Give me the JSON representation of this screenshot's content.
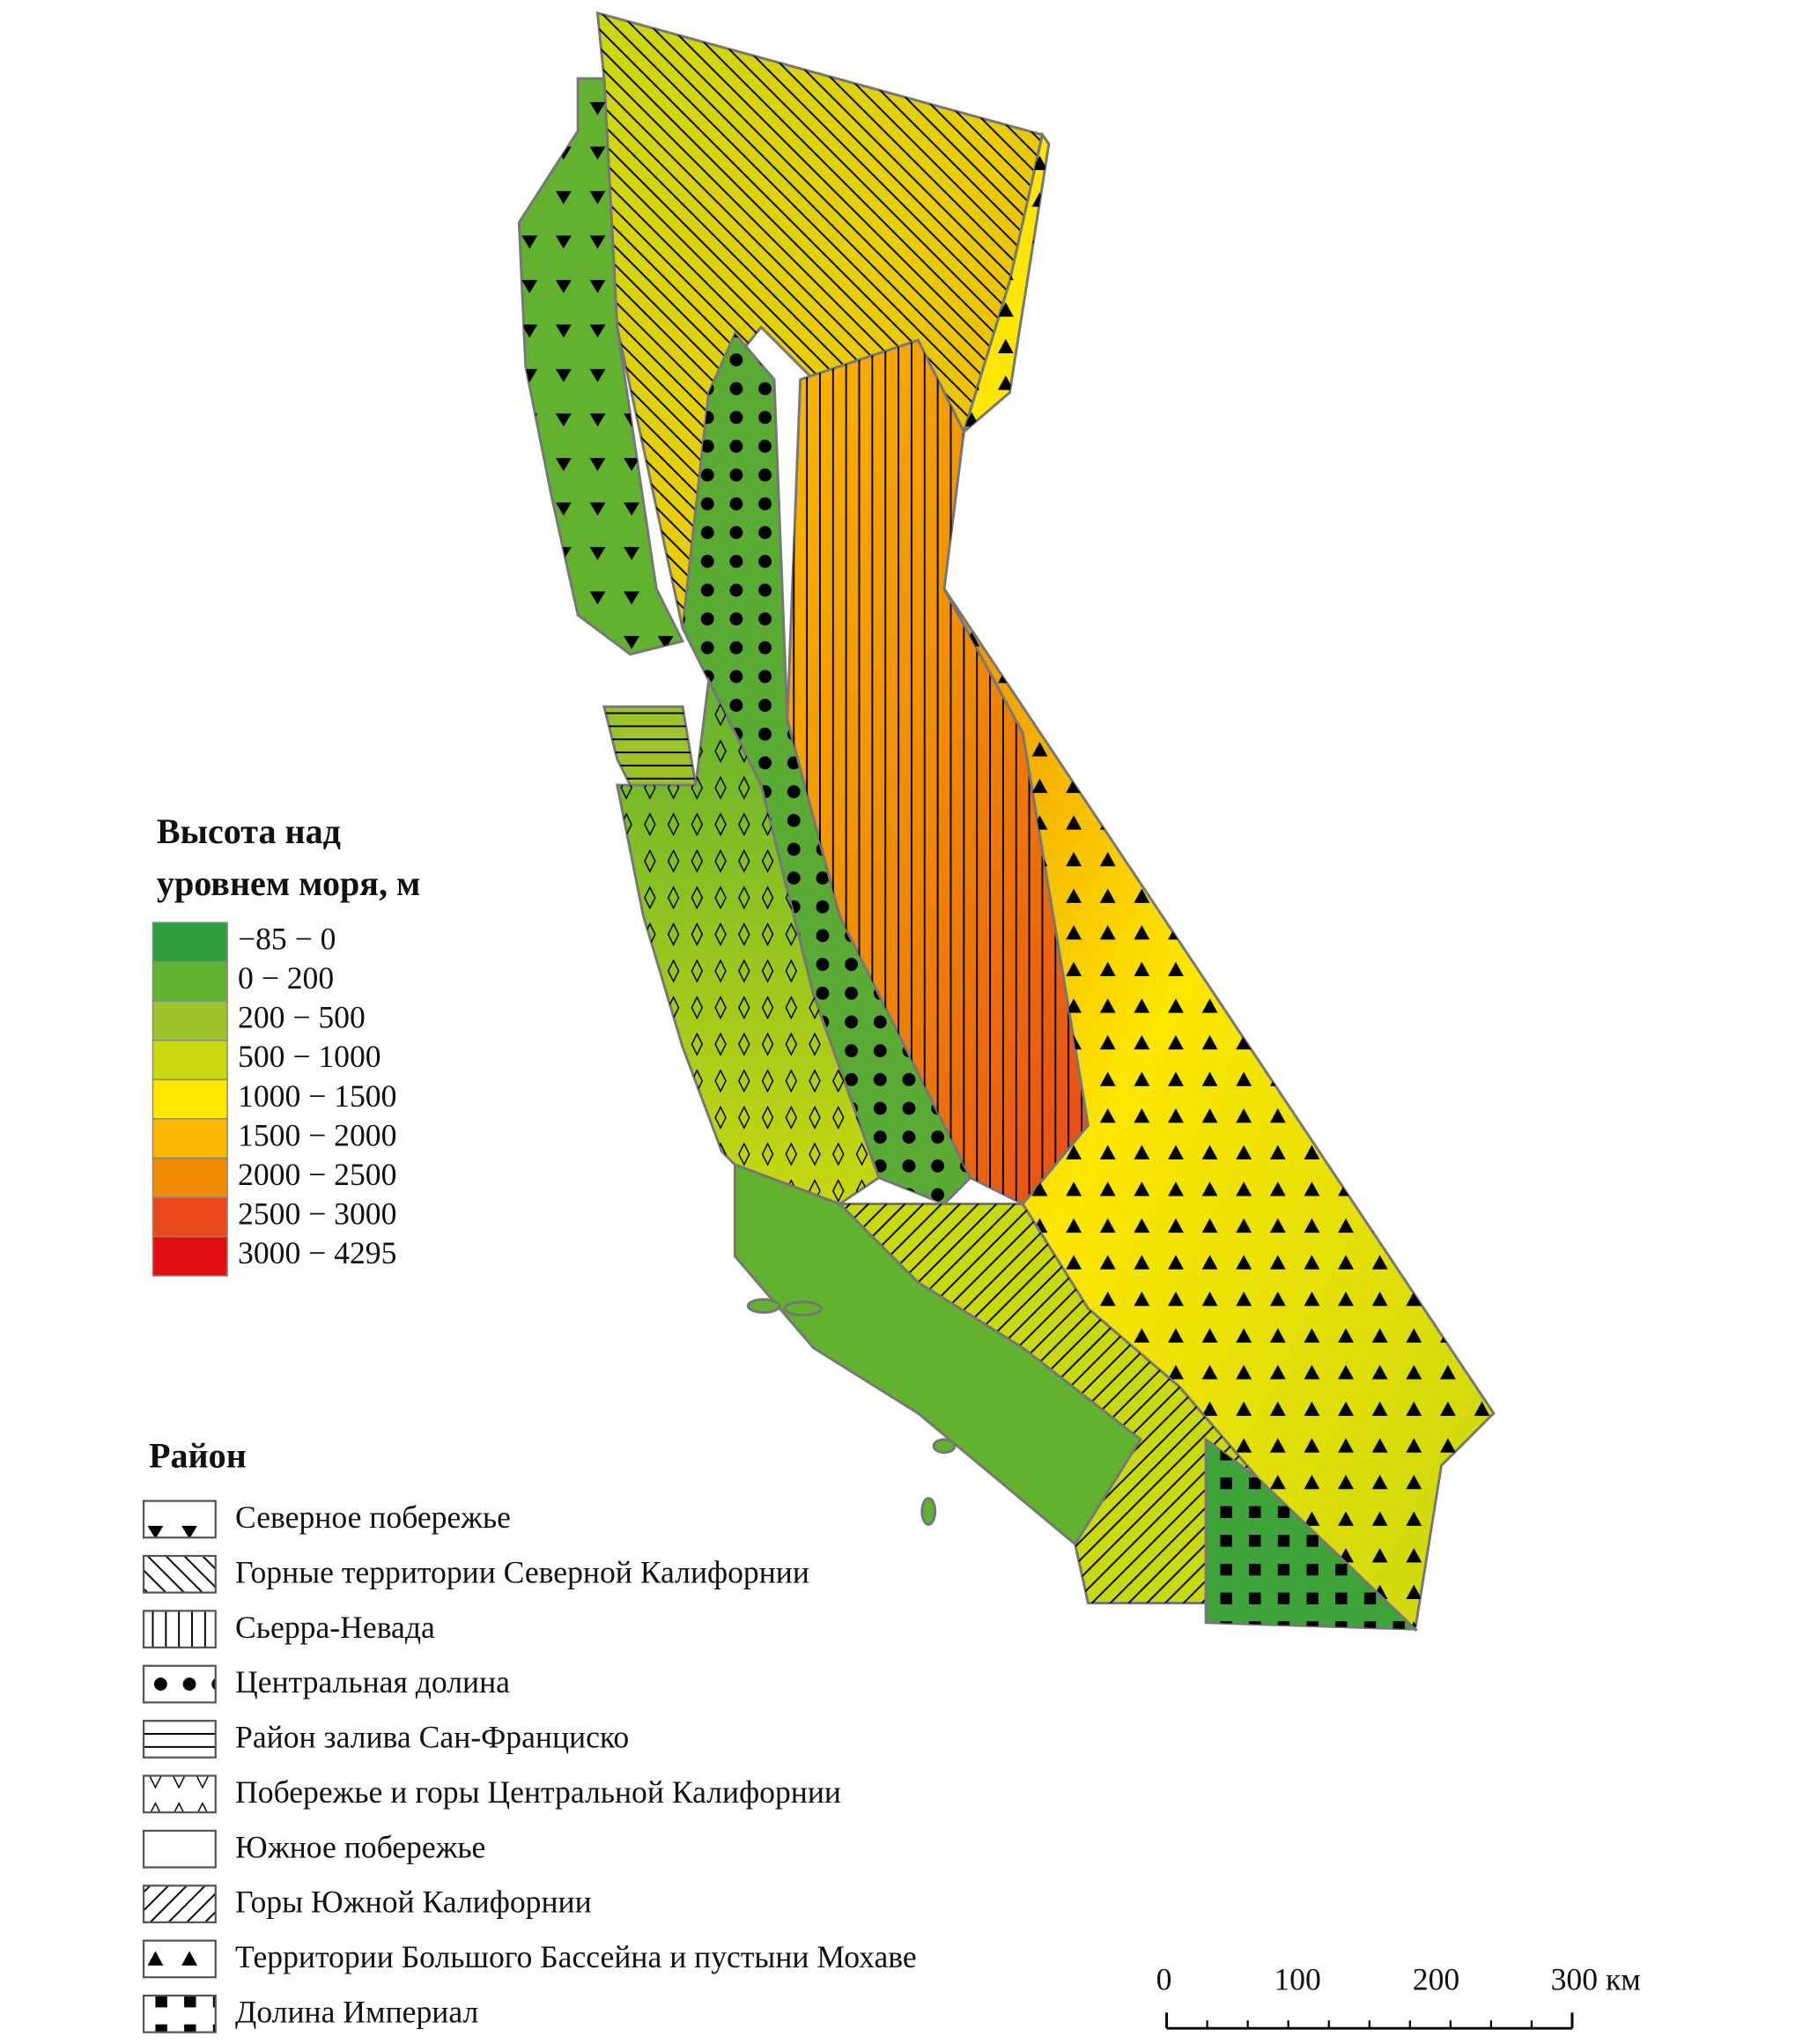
{
  "legend_elevation": {
    "title_lines": [
      "Высота над",
      "уровнем моря, м"
    ],
    "items": [
      {
        "label": "−85 − 0",
        "color": "#2e9e3e"
      },
      {
        "label": "0 − 200",
        "color": "#63b22f"
      },
      {
        "label": "200 − 500",
        "color": "#9cc42a"
      },
      {
        "label": "500 − 1000",
        "color": "#c9d80f"
      },
      {
        "label": "1000 − 1500",
        "color": "#fde600"
      },
      {
        "label": "1500 − 2000",
        "color": "#fbb800"
      },
      {
        "label": "2000 − 2500",
        "color": "#f08a00"
      },
      {
        "label": "2500 − 3000",
        "color": "#e8481a"
      },
      {
        "label": "3000 − 4295",
        "color": "#e30f13"
      }
    ]
  },
  "legend_region": {
    "title": "Район",
    "items": [
      "Северное побережье",
      "Горные территории Северной Калифорнии",
      "Сьерра-Невада",
      "Центральная долина",
      "Район залива Сан-Франциско",
      "Побережье и горы Центральной Калифорнии",
      "Южное побережье",
      "Горы Южной Калифорнии",
      "Территории Большого Бассейна и пустыни Мохаве",
      "Долина Империал"
    ]
  },
  "scale_bar": {
    "labels": [
      "0",
      "100",
      "200",
      "300 км"
    ]
  }
}
